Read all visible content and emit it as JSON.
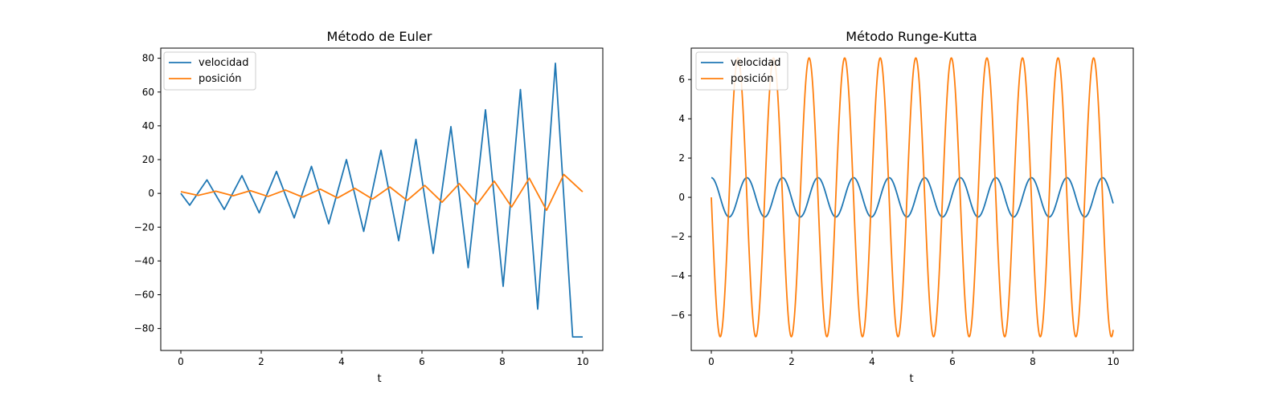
{
  "chart_data": [
    {
      "type": "line",
      "title": "Método de Euler",
      "xlabel": "t",
      "ylabel": "",
      "xlim": [
        -0.5,
        10.5
      ],
      "ylim": [
        -93,
        86
      ],
      "xticks": [
        0,
        2,
        4,
        6,
        8,
        10
      ],
      "yticks": [
        -80,
        -60,
        -40,
        -20,
        0,
        20,
        40,
        60,
        80
      ],
      "legend_position": "upper left",
      "grid": false,
      "series": [
        {
          "name": "velocidad",
          "color": "#1f77b4",
          "x": [
            0,
            0.22,
            0.65,
            1.08,
            1.52,
            1.95,
            2.38,
            2.82,
            3.25,
            3.68,
            4.12,
            4.55,
            4.98,
            5.42,
            5.85,
            6.28,
            6.72,
            7.15,
            7.58,
            8.02,
            8.45,
            8.88,
            9.32,
            9.75,
            10
          ],
          "y": [
            0,
            -7,
            8,
            -9.5,
            10.5,
            -11.5,
            13,
            -14.5,
            16,
            -18,
            20,
            -22.5,
            25.5,
            -28,
            32,
            -35.5,
            39.5,
            -44,
            49.5,
            -55,
            61.5,
            -68.5,
            77,
            -85,
            -85
          ]
        },
        {
          "name": "posición",
          "color": "#ff7f0e",
          "x": [
            0,
            0.43,
            0.87,
            1.3,
            1.73,
            2.17,
            2.6,
            3.03,
            3.47,
            3.9,
            4.33,
            4.77,
            5.2,
            5.63,
            6.07,
            6.5,
            6.93,
            7.37,
            7.8,
            8.23,
            8.67,
            9.1,
            9.53,
            9.97,
            10
          ],
          "y": [
            1,
            -1.2,
            1.3,
            -1.4,
            1.6,
            -1.8,
            2.0,
            -2.2,
            2.5,
            -2.7,
            3.0,
            -3.4,
            3.8,
            -4.2,
            4.7,
            -5.2,
            5.8,
            -6.5,
            7.2,
            -8.0,
            9.0,
            -10.0,
            11.2,
            1.5,
            1.0
          ]
        }
      ]
    },
    {
      "type": "line",
      "title": "Método Runge-Kutta",
      "xlabel": "t",
      "ylabel": "",
      "xlim": [
        -0.5,
        10.5
      ],
      "ylim": [
        -7.8,
        7.6
      ],
      "xticks": [
        0,
        2,
        4,
        6,
        8,
        10
      ],
      "yticks": [
        -6,
        -4,
        -2,
        0,
        2,
        4,
        6
      ],
      "legend_position": "upper left",
      "grid": false,
      "series": [
        {
          "name": "velocidad",
          "color": "#1f77b4",
          "x_range": [
            0,
            10
          ],
          "amplitude": 1,
          "angular_frequency": 7.1,
          "phase": "cos"
        },
        {
          "name": "posición",
          "color": "#ff7f0e",
          "x_range": [
            0,
            10
          ],
          "amplitude": 7.1,
          "angular_frequency": 7.1,
          "phase": "-sin"
        }
      ]
    }
  ]
}
